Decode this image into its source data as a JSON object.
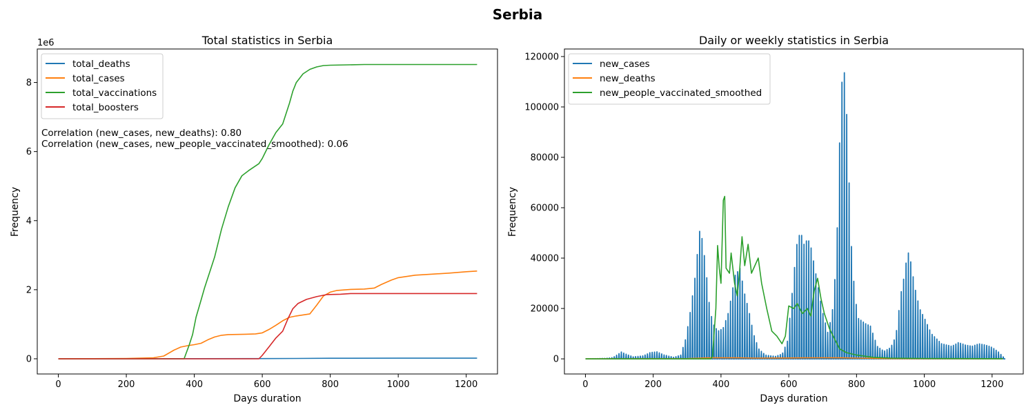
{
  "figure": {
    "suptitle": "Serbia"
  },
  "chart_data": [
    {
      "type": "line",
      "title": "Total statistics in Serbia",
      "xlabel": "Days duration",
      "ylabel": "Frequency",
      "y_offset_label": "1e6",
      "xlim": [
        -62,
        1292
      ],
      "ylim": [
        -0.44,
        8.97
      ],
      "y_unit": "millions",
      "xticks": [
        0,
        200,
        400,
        600,
        800,
        1000,
        1200
      ],
      "yticks": [
        0,
        2,
        4,
        6,
        8
      ],
      "legend": "upper-left",
      "annotation_lines": [
        "Correlation (new_cases, new_deaths): 0.80",
        "Correlation (new_cases, new_people_vaccinated_smoothed): 0.06"
      ],
      "series": [
        {
          "name": "total_deaths",
          "color": "#1f77b4",
          "points": [
            [
              0,
              0
            ],
            [
              200,
              0.001
            ],
            [
              400,
              0.004
            ],
            [
              600,
              0.006
            ],
            [
              700,
              0.01
            ],
            [
              800,
              0.016
            ],
            [
              1000,
              0.017
            ],
            [
              1232,
              0.018
            ]
          ]
        },
        {
          "name": "total_cases",
          "color": "#ff7f0e",
          "points": [
            [
              0,
              0
            ],
            [
              100,
              0.003
            ],
            [
              200,
              0.01
            ],
            [
              280,
              0.03
            ],
            [
              310,
              0.08
            ],
            [
              340,
              0.25
            ],
            [
              360,
              0.34
            ],
            [
              380,
              0.38
            ],
            [
              400,
              0.41
            ],
            [
              420,
              0.45
            ],
            [
              440,
              0.55
            ],
            [
              460,
              0.63
            ],
            [
              480,
              0.68
            ],
            [
              500,
              0.7
            ],
            [
              550,
              0.71
            ],
            [
              580,
              0.72
            ],
            [
              600,
              0.75
            ],
            [
              620,
              0.85
            ],
            [
              640,
              0.97
            ],
            [
              660,
              1.1
            ],
            [
              680,
              1.2
            ],
            [
              700,
              1.24
            ],
            [
              720,
              1.27
            ],
            [
              740,
              1.3
            ],
            [
              760,
              1.55
            ],
            [
              780,
              1.82
            ],
            [
              800,
              1.93
            ],
            [
              820,
              1.98
            ],
            [
              860,
              2.01
            ],
            [
              900,
              2.02
            ],
            [
              930,
              2.05
            ],
            [
              950,
              2.15
            ],
            [
              980,
              2.28
            ],
            [
              1000,
              2.35
            ],
            [
              1050,
              2.42
            ],
            [
              1100,
              2.45
            ],
            [
              1150,
              2.48
            ],
            [
              1200,
              2.52
            ],
            [
              1232,
              2.54
            ]
          ]
        },
        {
          "name": "total_vaccinations",
          "color": "#2ca02c",
          "points": [
            [
              0,
              0
            ],
            [
              370,
              0
            ],
            [
              385,
              0.4
            ],
            [
              395,
              0.7
            ],
            [
              405,
              1.2
            ],
            [
              420,
              1.7
            ],
            [
              430,
              2.05
            ],
            [
              445,
              2.5
            ],
            [
              460,
              2.95
            ],
            [
              480,
              3.75
            ],
            [
              500,
              4.4
            ],
            [
              520,
              4.95
            ],
            [
              540,
              5.3
            ],
            [
              560,
              5.45
            ],
            [
              590,
              5.65
            ],
            [
              600,
              5.8
            ],
            [
              620,
              6.2
            ],
            [
              640,
              6.55
            ],
            [
              660,
              6.8
            ],
            [
              680,
              7.4
            ],
            [
              690,
              7.75
            ],
            [
              700,
              8.0
            ],
            [
              720,
              8.25
            ],
            [
              740,
              8.38
            ],
            [
              760,
              8.45
            ],
            [
              780,
              8.49
            ],
            [
              800,
              8.5
            ],
            [
              850,
              8.51
            ],
            [
              900,
              8.52
            ],
            [
              1232,
              8.52
            ]
          ]
        },
        {
          "name": "total_boosters",
          "color": "#d62728",
          "points": [
            [
              0,
              0
            ],
            [
              590,
              0
            ],
            [
              600,
              0.1
            ],
            [
              620,
              0.35
            ],
            [
              640,
              0.6
            ],
            [
              660,
              0.8
            ],
            [
              675,
              1.15
            ],
            [
              690,
              1.45
            ],
            [
              705,
              1.6
            ],
            [
              730,
              1.72
            ],
            [
              760,
              1.8
            ],
            [
              790,
              1.86
            ],
            [
              830,
              1.87
            ],
            [
              860,
              1.89
            ],
            [
              1000,
              1.89
            ],
            [
              1232,
              1.89
            ]
          ]
        }
      ]
    },
    {
      "type": "line",
      "title": "Daily or weekly statistics in Serbia",
      "xlabel": "Days duration",
      "ylabel": "Frequency",
      "xlim": [
        -62,
        1292
      ],
      "ylim": [
        -6000,
        123000
      ],
      "xticks": [
        0,
        200,
        400,
        600,
        800,
        1000,
        1200
      ],
      "yticks": [
        0,
        20000,
        40000,
        60000,
        80000,
        100000,
        120000
      ],
      "legend": "upper-left",
      "series": [
        {
          "name": "new_cases",
          "color": "#1f77b4",
          "style": "weekly-spikes",
          "points": [
            [
              0,
              0
            ],
            [
              30,
              100
            ],
            [
              60,
              200
            ],
            [
              80,
              500
            ],
            [
              95,
              1800
            ],
            [
              105,
              2700
            ],
            [
              120,
              1800
            ],
            [
              140,
              800
            ],
            [
              170,
              1200
            ],
            [
              190,
              2500
            ],
            [
              210,
              2800
            ],
            [
              230,
              1600
            ],
            [
              260,
              600
            ],
            [
              280,
              1500
            ],
            [
              295,
              8000
            ],
            [
              310,
              20000
            ],
            [
              325,
              35000
            ],
            [
              335,
              51000
            ],
            [
              345,
              47000
            ],
            [
              355,
              35000
            ],
            [
              365,
              21000
            ],
            [
              375,
              14000
            ],
            [
              390,
              11000
            ],
            [
              405,
              12000
            ],
            [
              420,
              18000
            ],
            [
              430,
              25000
            ],
            [
              440,
              33000
            ],
            [
              455,
              36000
            ],
            [
              470,
              25000
            ],
            [
              480,
              20000
            ],
            [
              495,
              10000
            ],
            [
              510,
              4000
            ],
            [
              530,
              1500
            ],
            [
              560,
              1000
            ],
            [
              580,
              2000
            ],
            [
              595,
              7000
            ],
            [
              605,
              20000
            ],
            [
              615,
              35000
            ],
            [
              625,
              48000
            ],
            [
              635,
              50000
            ],
            [
              645,
              45000
            ],
            [
              655,
              48000
            ],
            [
              665,
              44000
            ],
            [
              680,
              33000
            ],
            [
              690,
              25000
            ],
            [
              700,
              18000
            ],
            [
              715,
              10000
            ],
            [
              730,
              21000
            ],
            [
              740,
              42000
            ],
            [
              748,
              82000
            ],
            [
              755,
              108000
            ],
            [
              760,
              117000
            ],
            [
              767,
              109000
            ],
            [
              775,
              77000
            ],
            [
              785,
              41000
            ],
            [
              795,
              24000
            ],
            [
              805,
              16000
            ],
            [
              815,
              15000
            ],
            [
              825,
              14000
            ],
            [
              840,
              13000
            ],
            [
              860,
              5000
            ],
            [
              880,
              3000
            ],
            [
              900,
              4500
            ],
            [
              915,
              9000
            ],
            [
              930,
              26000
            ],
            [
              940,
              33000
            ],
            [
              950,
              43000
            ],
            [
              960,
              38000
            ],
            [
              970,
              29000
            ],
            [
              985,
              20000
            ],
            [
              1000,
              16000
            ],
            [
              1020,
              10000
            ],
            [
              1050,
              6000
            ],
            [
              1080,
              5000
            ],
            [
              1100,
              6500
            ],
            [
              1120,
              5500
            ],
            [
              1140,
              5000
            ],
            [
              1160,
              6000
            ],
            [
              1180,
              5500
            ],
            [
              1200,
              4500
            ],
            [
              1220,
              2500
            ],
            [
              1232,
              800
            ]
          ]
        },
        {
          "name": "new_deaths",
          "color": "#ff7f0e",
          "points": [
            [
              0,
              0
            ],
            [
              300,
              100
            ],
            [
              340,
              300
            ],
            [
              360,
              400
            ],
            [
              450,
              450
            ],
            [
              500,
              300
            ],
            [
              600,
              350
            ],
            [
              650,
              400
            ],
            [
              700,
              450
            ],
            [
              760,
              400
            ],
            [
              800,
              300
            ],
            [
              900,
              100
            ],
            [
              1000,
              80
            ],
            [
              1232,
              30
            ]
          ]
        },
        {
          "name": "new_people_vaccinated_smoothed",
          "color": "#2ca02c",
          "points": [
            [
              0,
              0
            ],
            [
              370,
              0
            ],
            [
              375,
              1000
            ],
            [
              385,
              20000
            ],
            [
              390,
              45000
            ],
            [
              395,
              36000
            ],
            [
              400,
              30000
            ],
            [
              407,
              63000
            ],
            [
              411,
              64500
            ],
            [
              415,
              36000
            ],
            [
              425,
              34000
            ],
            [
              430,
              42000
            ],
            [
              440,
              30000
            ],
            [
              448,
              25000
            ],
            [
              455,
              35000
            ],
            [
              462,
              48500
            ],
            [
              470,
              37000
            ],
            [
              480,
              45500
            ],
            [
              490,
              34000
            ],
            [
              500,
              37000
            ],
            [
              510,
              40000
            ],
            [
              520,
              30000
            ],
            [
              535,
              20000
            ],
            [
              550,
              11000
            ],
            [
              565,
              9000
            ],
            [
              580,
              6000
            ],
            [
              590,
              9000
            ],
            [
              600,
              21000
            ],
            [
              615,
              20000
            ],
            [
              625,
              22000
            ],
            [
              640,
              18000
            ],
            [
              655,
              20000
            ],
            [
              665,
              17000
            ],
            [
              675,
              27000
            ],
            [
              685,
              32000
            ],
            [
              695,
              24000
            ],
            [
              705,
              18000
            ],
            [
              720,
              12000
            ],
            [
              735,
              8000
            ],
            [
              750,
              4000
            ],
            [
              770,
              2500
            ],
            [
              800,
              1500
            ],
            [
              850,
              600
            ],
            [
              900,
              300
            ],
            [
              1000,
              150
            ],
            [
              1232,
              50
            ]
          ]
        }
      ]
    }
  ]
}
